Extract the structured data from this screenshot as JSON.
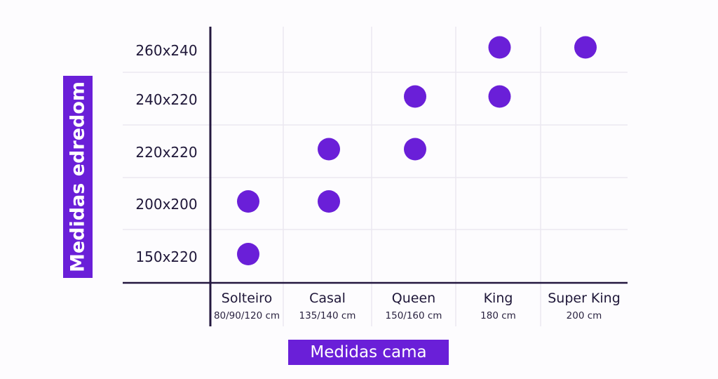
{
  "chart_data": {
    "type": "scatter",
    "xlabel": "Medidas cama",
    "ylabel": "Medidas edredom",
    "categories": [
      {
        "name": "Solteiro",
        "sub": "80/90/120 cm"
      },
      {
        "name": "Casal",
        "sub": "135/140 cm"
      },
      {
        "name": "Queen",
        "sub": "150/160 cm"
      },
      {
        "name": "King",
        "sub": "180 cm"
      },
      {
        "name": "Super King",
        "sub": "200 cm"
      }
    ],
    "rows": [
      "260x240",
      "240x220",
      "220x220",
      "200x200",
      "150x220"
    ],
    "points": [
      {
        "x": "Solteiro",
        "y": "150x220"
      },
      {
        "x": "Solteiro",
        "y": "200x200"
      },
      {
        "x": "Casal",
        "y": "200x200"
      },
      {
        "x": "Casal",
        "y": "220x220"
      },
      {
        "x": "Queen",
        "y": "220x220"
      },
      {
        "x": "Queen",
        "y": "240x220"
      },
      {
        "x": "King",
        "y": "240x220"
      },
      {
        "x": "King",
        "y": "260x240"
      },
      {
        "x": "Super King",
        "y": "260x240"
      }
    ],
    "grid": true,
    "dot_color": "#6a1fd8",
    "label_box_color": "#6a1fd8"
  }
}
